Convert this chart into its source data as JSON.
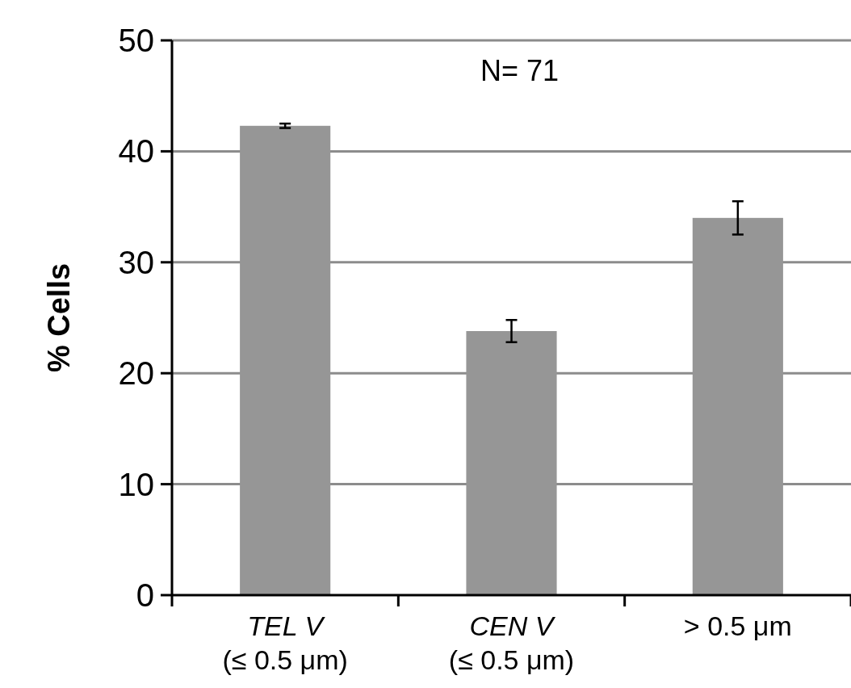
{
  "chart_data": {
    "type": "bar",
    "ylabel": "% Cells",
    "categories": [
      "TEL V\n(≤ 0.5 μm)",
      "CEN V\n(≤ 0.5 μm)",
      "> 0.5 μm"
    ],
    "values": [
      42.3,
      23.8,
      34.0
    ],
    "errors": [
      0.2,
      1.0,
      1.5
    ],
    "color": "#969696",
    "ylim": [
      0,
      50
    ],
    "yticks": [
      0,
      10,
      20,
      30,
      40,
      50
    ],
    "grid": "y",
    "annotations": [
      "N= 71"
    ]
  }
}
